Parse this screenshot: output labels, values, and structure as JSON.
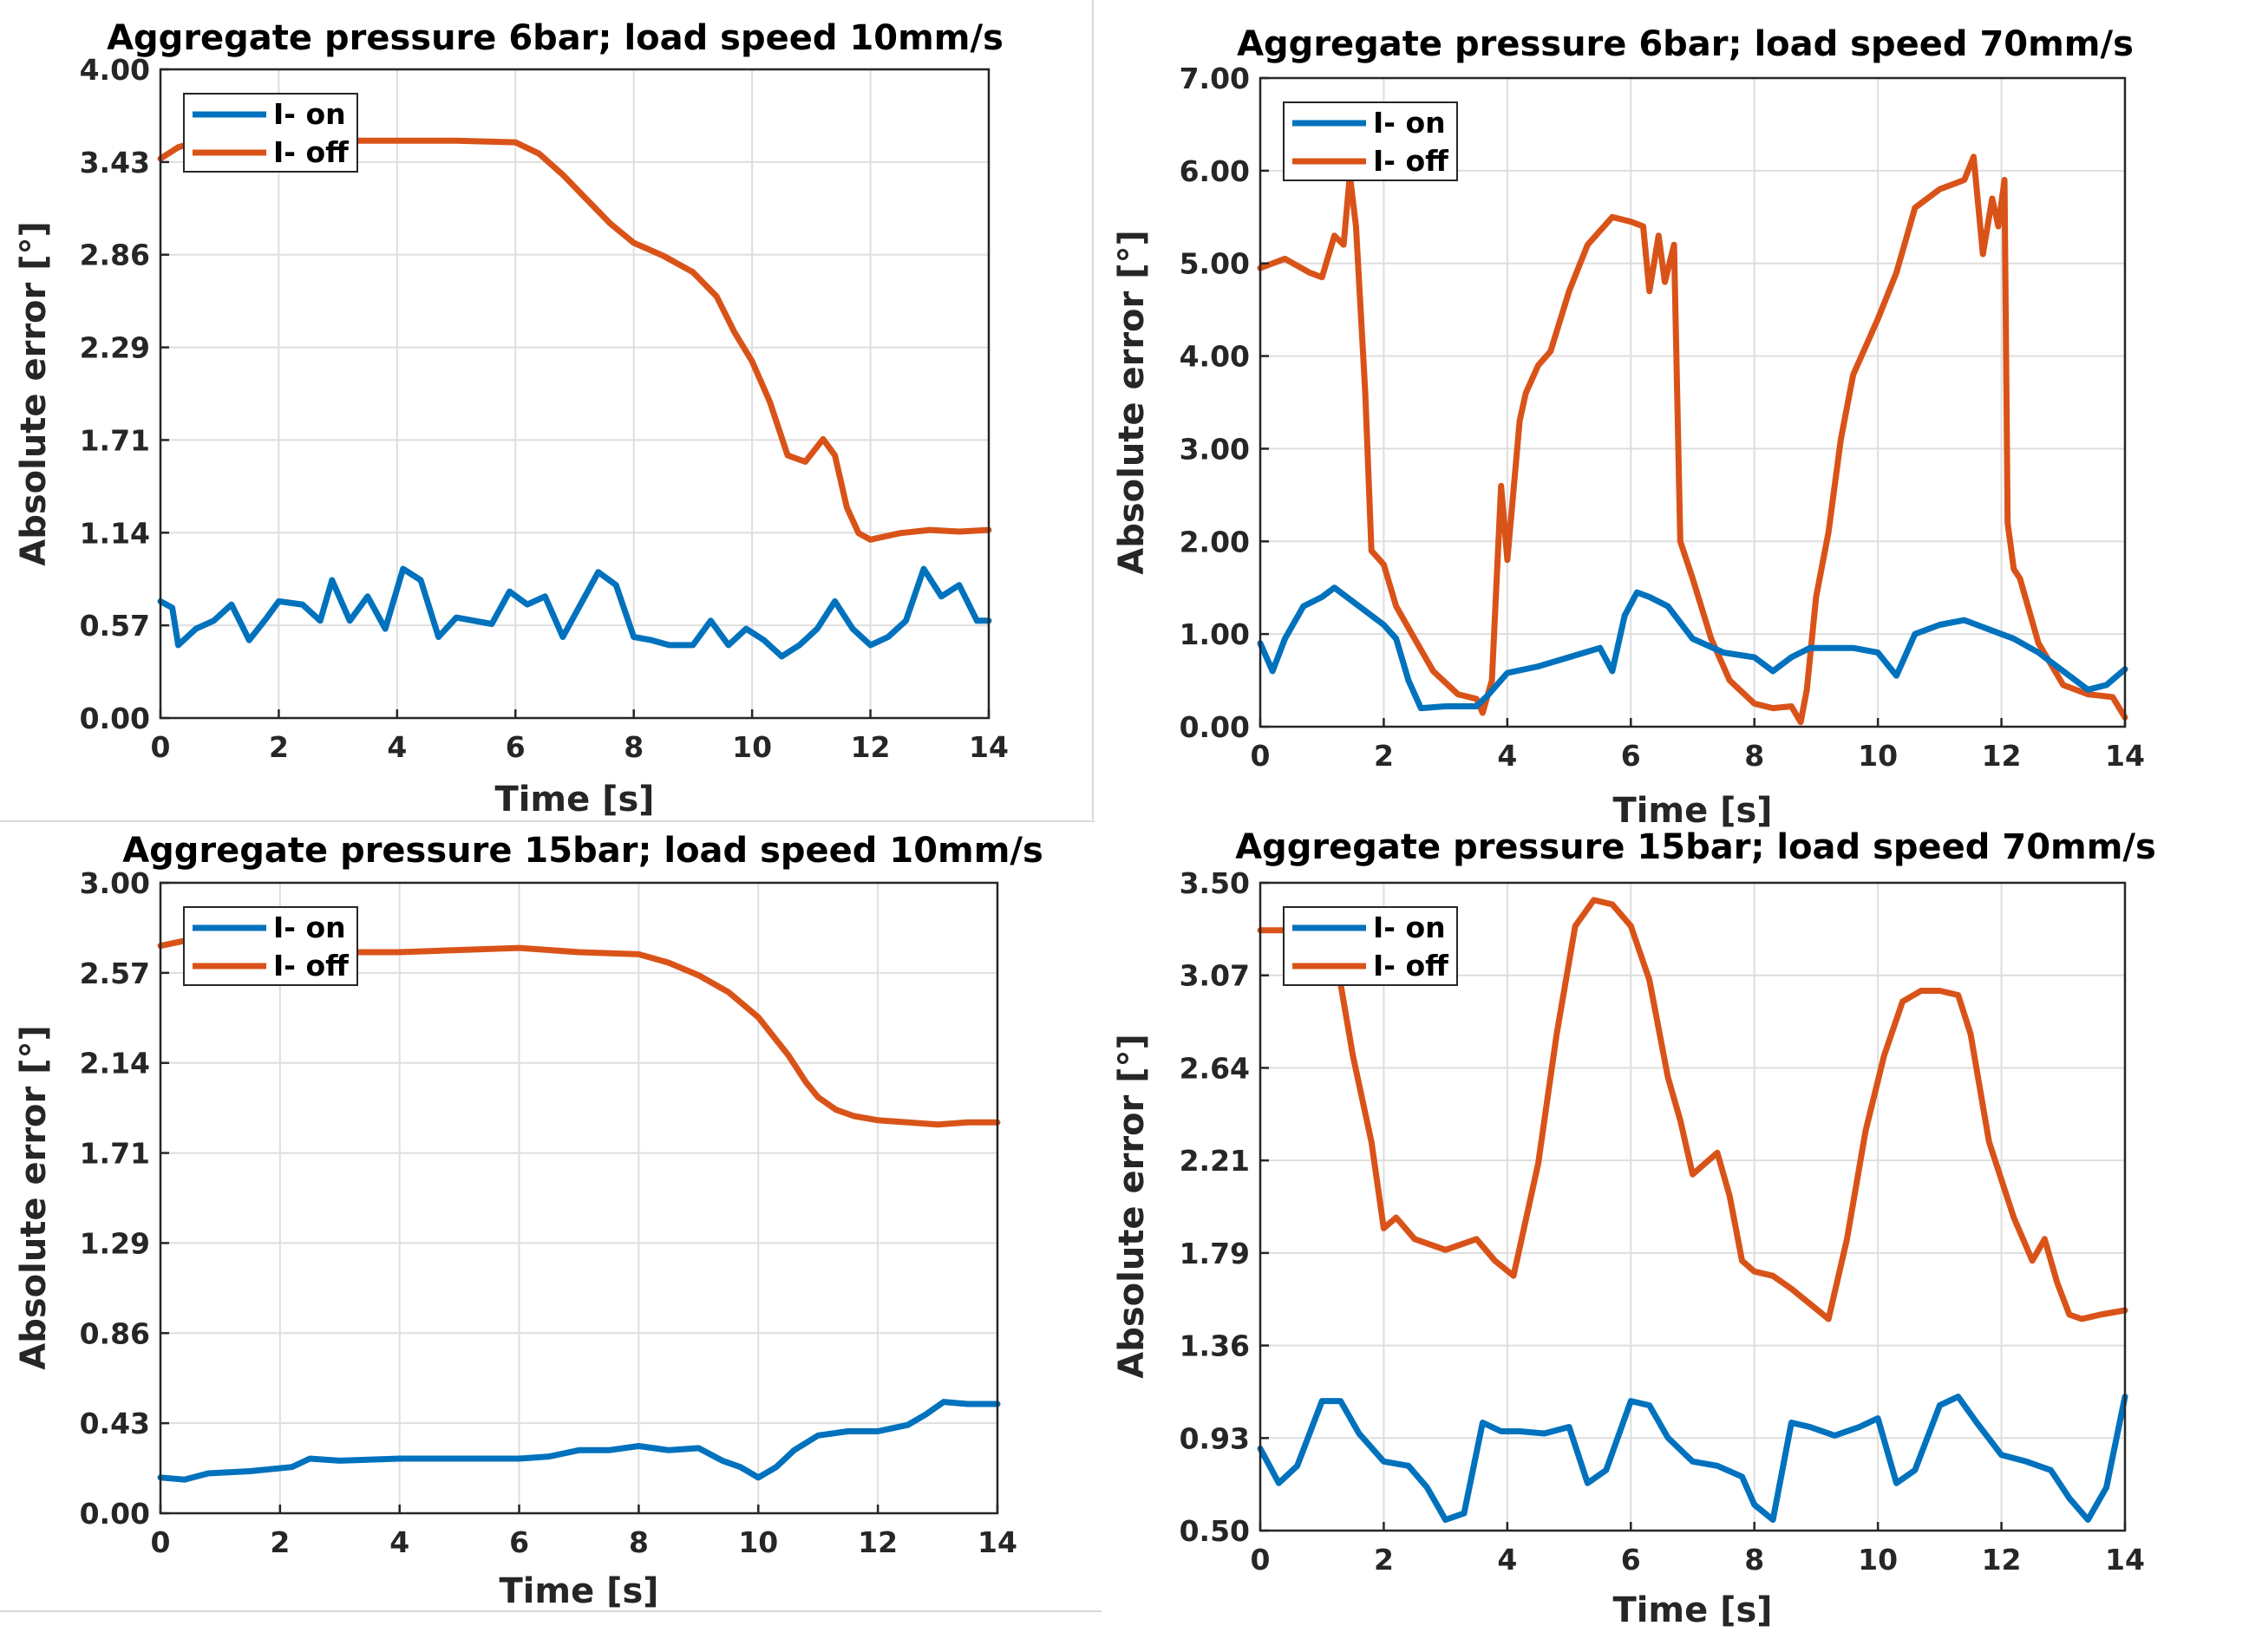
{
  "colors": {
    "on": "#0072BD",
    "off": "#D95319",
    "grid": "#dedede",
    "axis": "#262626"
  },
  "chart_data": [
    {
      "type": "line",
      "title": "Aggregate pressure 6bar; load speed 10mm/s",
      "xlabel": "Time [s]",
      "ylabel": "Absolute error [°]",
      "xlim": [
        0,
        14
      ],
      "ylim": [
        0,
        4
      ],
      "xticks": [
        "0",
        "2",
        "4",
        "6",
        "8",
        "10",
        "12",
        "14"
      ],
      "yticks": [
        "0.00",
        "0.57",
        "1.14",
        "1.71",
        "2.29",
        "2.86",
        "3.43",
        "4.00"
      ],
      "grid": true,
      "legend": "top-left",
      "series": [
        {
          "name": "I- on",
          "color": "#0072BD",
          "x": [
            0,
            0.2,
            0.3,
            0.6,
            0.9,
            1.2,
            1.5,
            1.8,
            2.0,
            2.4,
            2.7,
            2.9,
            3.2,
            3.5,
            3.8,
            4.1,
            4.4,
            4.7,
            5.0,
            5.3,
            5.6,
            5.9,
            6.2,
            6.5,
            6.8,
            7.1,
            7.4,
            7.7,
            8.0,
            8.3,
            8.6,
            9.0,
            9.3,
            9.6,
            9.9,
            10.2,
            10.5,
            10.8,
            11.1,
            11.4,
            11.7,
            12.0,
            12.3,
            12.6,
            12.9,
            13.2,
            13.5,
            13.8,
            14.0
          ],
          "y": [
            0.72,
            0.68,
            0.45,
            0.55,
            0.6,
            0.7,
            0.48,
            0.62,
            0.72,
            0.7,
            0.6,
            0.85,
            0.6,
            0.75,
            0.55,
            0.92,
            0.85,
            0.5,
            0.62,
            0.6,
            0.58,
            0.78,
            0.7,
            0.75,
            0.5,
            0.7,
            0.9,
            0.82,
            0.5,
            0.48,
            0.45,
            0.45,
            0.6,
            0.45,
            0.55,
            0.48,
            0.38,
            0.45,
            0.55,
            0.72,
            0.55,
            0.45,
            0.5,
            0.6,
            0.92,
            0.75,
            0.82,
            0.6,
            0.6
          ]
        },
        {
          "name": "I- off",
          "color": "#D95319",
          "x": [
            0,
            0.3,
            0.6,
            1,
            2,
            3,
            4,
            5,
            6,
            6.4,
            6.8,
            7.2,
            7.6,
            8,
            8.5,
            9,
            9.4,
            9.7,
            10,
            10.3,
            10.6,
            10.9,
            11.2,
            11.4,
            11.6,
            11.8,
            12,
            12.5,
            13,
            13.5,
            14
          ],
          "y": [
            3.45,
            3.52,
            3.55,
            3.56,
            3.55,
            3.56,
            3.56,
            3.56,
            3.55,
            3.48,
            3.35,
            3.2,
            3.05,
            2.93,
            2.85,
            2.75,
            2.6,
            2.38,
            2.2,
            1.95,
            1.62,
            1.58,
            1.72,
            1.62,
            1.3,
            1.14,
            1.1,
            1.14,
            1.16,
            1.15,
            1.16
          ]
        }
      ]
    },
    {
      "type": "line",
      "title": "Aggregate pressure 6bar; load speed 70mm/s",
      "xlabel": "Time [s]",
      "ylabel": "Absolute error [°]",
      "xlim": [
        0,
        14
      ],
      "ylim": [
        0,
        7
      ],
      "xticks": [
        "0",
        "2",
        "4",
        "6",
        "8",
        "10",
        "12",
        "14"
      ],
      "yticks": [
        "0.00",
        "1.00",
        "2.00",
        "3.00",
        "4.00",
        "5.00",
        "6.00",
        "7.00"
      ],
      "grid": true,
      "legend": "top-left",
      "series": [
        {
          "name": "I- on",
          "color": "#0072BD",
          "x": [
            0,
            0.2,
            0.4,
            0.7,
            1.0,
            1.2,
            1.5,
            1.8,
            2.0,
            2.2,
            2.4,
            2.6,
            3.0,
            3.5,
            3.7,
            4.0,
            4.5,
            5.0,
            5.5,
            5.7,
            5.9,
            6.1,
            6.3,
            6.6,
            7.0,
            7.5,
            8.0,
            8.3,
            8.6,
            8.9,
            9.2,
            9.6,
            10.0,
            10.3,
            10.6,
            11.0,
            11.4,
            11.8,
            12.2,
            12.6,
            13.0,
            13.4,
            13.7,
            14.0
          ],
          "y": [
            0.9,
            0.6,
            0.95,
            1.3,
            1.4,
            1.5,
            1.35,
            1.2,
            1.1,
            0.95,
            0.5,
            0.2,
            0.22,
            0.22,
            0.35,
            0.58,
            0.65,
            0.75,
            0.85,
            0.6,
            1.2,
            1.45,
            1.4,
            1.3,
            0.95,
            0.8,
            0.75,
            0.6,
            0.75,
            0.85,
            0.85,
            0.85,
            0.8,
            0.55,
            1.0,
            1.1,
            1.15,
            1.05,
            0.95,
            0.8,
            0.6,
            0.4,
            0.45,
            0.62
          ]
        },
        {
          "name": "I- off",
          "color": "#D95319",
          "x": [
            0,
            0.4,
            0.8,
            1.0,
            1.2,
            1.35,
            1.45,
            1.55,
            1.7,
            1.8,
            2.0,
            2.2,
            2.5,
            2.8,
            3.2,
            3.5,
            3.6,
            3.75,
            3.9,
            4.0,
            4.2,
            4.3,
            4.5,
            4.7,
            5.0,
            5.3,
            5.7,
            6.0,
            6.2,
            6.3,
            6.45,
            6.55,
            6.7,
            6.8,
            7.0,
            7.3,
            7.6,
            8.0,
            8.3,
            8.6,
            8.75,
            8.85,
            9.0,
            9.2,
            9.4,
            9.6,
            9.8,
            10.0,
            10.3,
            10.6,
            11.0,
            11.2,
            11.4,
            11.55,
            11.7,
            11.85,
            11.95,
            12.05,
            12.1,
            12.2,
            12.3,
            12.6,
            13.0,
            13.4,
            13.8,
            14.0
          ],
          "y": [
            4.95,
            5.05,
            4.9,
            4.85,
            5.3,
            5.2,
            5.95,
            5.4,
            3.6,
            1.9,
            1.75,
            1.3,
            0.95,
            0.6,
            0.35,
            0.3,
            0.15,
            0.5,
            2.6,
            1.8,
            3.3,
            3.6,
            3.9,
            4.05,
            4.7,
            5.2,
            5.5,
            5.45,
            5.4,
            4.7,
            5.3,
            4.8,
            5.2,
            2.0,
            1.6,
            0.95,
            0.5,
            0.25,
            0.2,
            0.22,
            0.05,
            0.4,
            1.4,
            2.1,
            3.1,
            3.8,
            4.1,
            4.4,
            4.9,
            5.6,
            5.8,
            5.85,
            5.9,
            6.15,
            5.1,
            5.7,
            5.4,
            5.9,
            2.2,
            1.7,
            1.6,
            0.9,
            0.45,
            0.35,
            0.32,
            0.1
          ]
        }
      ]
    },
    {
      "type": "line",
      "title": "Aggregate pressure 15bar; load speed 10mm/s",
      "xlabel": "Time [s]",
      "ylabel": "Absolute error [°]",
      "xlim": [
        0,
        14
      ],
      "ylim": [
        0,
        3
      ],
      "xticks": [
        "0",
        "2",
        "4",
        "6",
        "8",
        "10",
        "12",
        "14"
      ],
      "yticks": [
        "0.00",
        "0.43",
        "0.86",
        "1.29",
        "1.71",
        "2.14",
        "2.57",
        "3.00"
      ],
      "grid": true,
      "legend": "top-left",
      "series": [
        {
          "name": "I- on",
          "color": "#0072BD",
          "x": [
            0,
            0.4,
            0.8,
            1.5,
            2.2,
            2.5,
            3.0,
            4.0,
            5.0,
            6.0,
            6.5,
            7.0,
            7.5,
            8.0,
            8.5,
            9.0,
            9.4,
            9.7,
            10.0,
            10.3,
            10.6,
            11.0,
            11.5,
            12.0,
            12.5,
            12.8,
            13.1,
            13.5,
            14.0
          ],
          "y": [
            0.17,
            0.16,
            0.19,
            0.2,
            0.22,
            0.26,
            0.25,
            0.26,
            0.26,
            0.26,
            0.27,
            0.3,
            0.3,
            0.32,
            0.3,
            0.31,
            0.25,
            0.22,
            0.17,
            0.22,
            0.3,
            0.37,
            0.39,
            0.39,
            0.42,
            0.47,
            0.53,
            0.52,
            0.52
          ]
        },
        {
          "name": "I- off",
          "color": "#D95319",
          "x": [
            0,
            0.5,
            1,
            1.5,
            2,
            3,
            4,
            5,
            6,
            7,
            8,
            8.5,
            9,
            9.5,
            10,
            10.5,
            10.8,
            11,
            11.3,
            11.6,
            12,
            12.5,
            13,
            13.5,
            14
          ],
          "y": [
            2.7,
            2.73,
            2.72,
            2.7,
            2.68,
            2.67,
            2.67,
            2.68,
            2.69,
            2.67,
            2.66,
            2.62,
            2.56,
            2.48,
            2.36,
            2.18,
            2.05,
            1.98,
            1.92,
            1.89,
            1.87,
            1.86,
            1.85,
            1.86,
            1.86
          ]
        }
      ]
    },
    {
      "type": "line",
      "title": "Aggregate pressure 15bar; load speed 70mm/s",
      "xlabel": "Time [s]",
      "ylabel": "Absolute error [°]",
      "xlim": [
        0,
        14
      ],
      "ylim": [
        0.5,
        3.5
      ],
      "xticks": [
        "0",
        "2",
        "4",
        "6",
        "8",
        "10",
        "12",
        "14"
      ],
      "yticks": [
        "0.50",
        "0.93",
        "1.36",
        "1.79",
        "2.21",
        "2.64",
        "3.07",
        "3.50"
      ],
      "grid": true,
      "legend": "top-left",
      "series": [
        {
          "name": "I- on",
          "color": "#0072BD",
          "x": [
            0,
            0.3,
            0.6,
            1.0,
            1.3,
            1.6,
            2.0,
            2.4,
            2.7,
            3.0,
            3.3,
            3.6,
            3.9,
            4.2,
            4.6,
            5.0,
            5.3,
            5.6,
            6.0,
            6.3,
            6.6,
            7.0,
            7.4,
            7.8,
            8.0,
            8.3,
            8.6,
            8.9,
            9.3,
            9.7,
            10.0,
            10.3,
            10.6,
            11.0,
            11.3,
            11.6,
            12.0,
            12.4,
            12.8,
            13.1,
            13.4,
            13.7,
            14.0
          ],
          "y": [
            0.88,
            0.72,
            0.8,
            1.1,
            1.1,
            0.95,
            0.82,
            0.8,
            0.7,
            0.55,
            0.58,
            1.0,
            0.96,
            0.96,
            0.95,
            0.98,
            0.72,
            0.78,
            1.1,
            1.08,
            0.93,
            0.82,
            0.8,
            0.75,
            0.62,
            0.55,
            1.0,
            0.98,
            0.94,
            0.98,
            1.02,
            0.72,
            0.78,
            1.08,
            1.12,
            1.0,
            0.85,
            0.82,
            0.78,
            0.65,
            0.55,
            0.7,
            1.12
          ]
        },
        {
          "name": "I- off",
          "color": "#D95319",
          "x": [
            0,
            0.4,
            0.8,
            1.2,
            1.5,
            1.8,
            2.0,
            2.2,
            2.5,
            3.0,
            3.5,
            3.8,
            4.1,
            4.5,
            4.8,
            5.1,
            5.4,
            5.7,
            6.0,
            6.3,
            6.6,
            6.8,
            7.0,
            7.2,
            7.4,
            7.6,
            7.8,
            8.0,
            8.3,
            8.6,
            8.9,
            9.2,
            9.5,
            9.8,
            10.1,
            10.4,
            10.7,
            11.0,
            11.3,
            11.5,
            11.8,
            12.2,
            12.5,
            12.7,
            12.9,
            13.1,
            13.3,
            13.6,
            14.0
          ],
          "y": [
            3.28,
            3.28,
            3.25,
            3.2,
            2.7,
            2.3,
            1.9,
            1.95,
            1.85,
            1.8,
            1.85,
            1.75,
            1.68,
            2.2,
            2.8,
            3.3,
            3.42,
            3.4,
            3.3,
            3.05,
            2.6,
            2.4,
            2.15,
            2.2,
            2.25,
            2.05,
            1.75,
            1.7,
            1.68,
            1.62,
            1.55,
            1.48,
            1.85,
            2.35,
            2.7,
            2.95,
            3.0,
            3.0,
            2.98,
            2.8,
            2.3,
            1.95,
            1.75,
            1.85,
            1.65,
            1.5,
            1.48,
            1.5,
            1.52
          ]
        }
      ]
    }
  ]
}
